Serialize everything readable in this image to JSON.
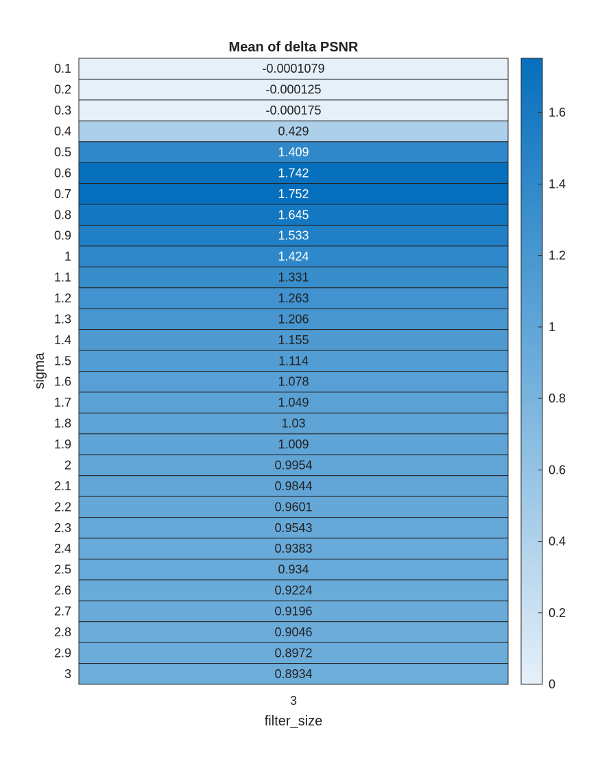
{
  "chart_data": {
    "type": "heatmap",
    "title": "Mean of delta PSNR",
    "xlabel": "filter_size",
    "ylabel": "sigma",
    "x_categories": [
      "3"
    ],
    "y_categories": [
      "0.1",
      "0.2",
      "0.3",
      "0.4",
      "0.5",
      "0.6",
      "0.7",
      "0.8",
      "0.9",
      "1",
      "1.1",
      "1.2",
      "1.3",
      "1.4",
      "1.5",
      "1.6",
      "1.7",
      "1.8",
      "1.9",
      "2",
      "2.1",
      "2.2",
      "2.3",
      "2.4",
      "2.5",
      "2.6",
      "2.7",
      "2.8",
      "2.9",
      "3"
    ],
    "values": [
      [
        -0.0001079
      ],
      [
        -0.000125
      ],
      [
        -0.000175
      ],
      [
        0.429
      ],
      [
        1.409
      ],
      [
        1.742
      ],
      [
        1.752
      ],
      [
        1.645
      ],
      [
        1.533
      ],
      [
        1.424
      ],
      [
        1.331
      ],
      [
        1.263
      ],
      [
        1.206
      ],
      [
        1.155
      ],
      [
        1.114
      ],
      [
        1.078
      ],
      [
        1.049
      ],
      [
        1.03
      ],
      [
        1.009
      ],
      [
        0.9954
      ],
      [
        0.9844
      ],
      [
        0.9601
      ],
      [
        0.9543
      ],
      [
        0.9383
      ],
      [
        0.934
      ],
      [
        0.9224
      ],
      [
        0.9196
      ],
      [
        0.9046
      ],
      [
        0.8972
      ],
      [
        0.8934
      ]
    ],
    "cell_labels": [
      "-0.0001079",
      "-0.000125",
      "-0.000175",
      "0.429",
      "1.409",
      "1.742",
      "1.752",
      "1.645",
      "1.533",
      "1.424",
      "1.331",
      "1.263",
      "1.206",
      "1.155",
      "1.114",
      "1.078",
      "1.049",
      "1.03",
      "1.009",
      "0.9954",
      "0.9844",
      "0.9601",
      "0.9543",
      "0.9383",
      "0.934",
      "0.9224",
      "0.9196",
      "0.9046",
      "0.8972",
      "0.8934"
    ],
    "colorbar": {
      "range": [
        0,
        1.752
      ],
      "ticks": [
        0,
        0.2,
        0.4,
        0.6,
        0.8,
        1,
        1.2,
        1.4,
        1.6
      ],
      "tick_labels": [
        "0",
        "0.2",
        "0.4",
        "0.6",
        "0.8",
        "1",
        "1.2",
        "1.4",
        "1.6"
      ]
    },
    "colormap": {
      "low": "#e6f0f9",
      "mid": "#6faedb",
      "high": "#066fbd"
    },
    "grid": false,
    "legend": "colorbar-right"
  }
}
